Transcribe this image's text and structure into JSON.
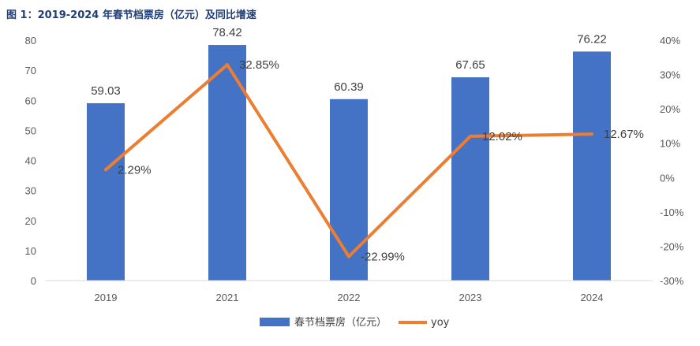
{
  "chart_data": {
    "type": "bar",
    "title": "图 1：2019-2024 年春节档票房（亿元）及同比增速",
    "categories": [
      "2019",
      "2021",
      "2022",
      "2023",
      "2024"
    ],
    "series": [
      {
        "name": "春节档票房（亿元）",
        "type": "bar",
        "axis": "left",
        "values": [
          59.03,
          78.42,
          60.39,
          67.65,
          76.22
        ],
        "labels": [
          "59.03",
          "78.42",
          "60.39",
          "67.65",
          "76.22"
        ],
        "color": "#4472c4"
      },
      {
        "name": "yoy",
        "type": "line",
        "axis": "right",
        "values": [
          2.29,
          32.85,
          -22.99,
          12.02,
          12.67
        ],
        "labels": [
          "2.29%",
          "32.85%",
          "-22.99%",
          "12.02%",
          "12.67%"
        ],
        "color": "#ed7d31"
      }
    ],
    "y_left": {
      "lim": [
        0,
        80
      ],
      "ticks": [
        "0",
        "10",
        "20",
        "30",
        "40",
        "50",
        "60",
        "70",
        "80"
      ]
    },
    "y_right": {
      "lim": [
        -30,
        40
      ],
      "ticks": [
        "-30%",
        "-20%",
        "-10%",
        "0%",
        "10%",
        "20%",
        "30%",
        "40%"
      ]
    },
    "legend": "bottom",
    "grid": false
  }
}
